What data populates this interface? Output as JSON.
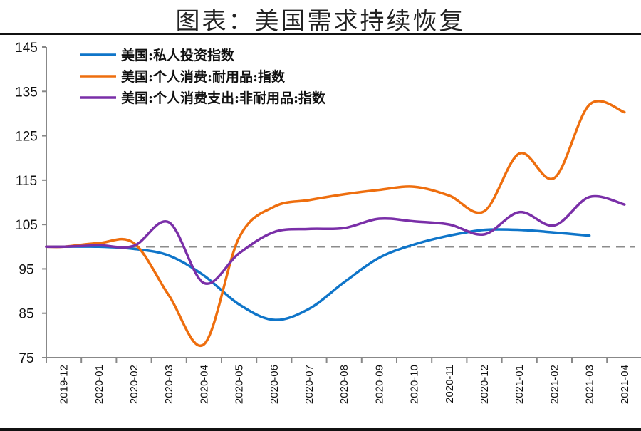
{
  "title": "图表：美国需求持续恢复",
  "chart_data": {
    "type": "line",
    "title": "图表：美国需求持续恢复",
    "xlabel": "",
    "ylabel": "",
    "categories": [
      "2019-12",
      "2020-01",
      "2020-02",
      "2020-03",
      "2020-04",
      "2020-05",
      "2020-06",
      "2020-07",
      "2020-08",
      "2020-09",
      "2020-10",
      "2020-11",
      "2020-12",
      "2021-01",
      "2021-02",
      "2021-03",
      "2021-04"
    ],
    "ylim": [
      75,
      145
    ],
    "yticks": [
      75,
      85,
      95,
      105,
      115,
      125,
      135,
      145
    ],
    "grid": false,
    "legend": "top-left",
    "reference_line": {
      "value": 100,
      "style": "dashed",
      "color": "#8c8c8c"
    },
    "series": [
      {
        "name": "美国:私人投资指数",
        "color": "#0f75c9",
        "values": [
          100,
          100,
          99.5,
          98,
          93.5,
          87,
          83.5,
          86,
          92,
          97.5,
          100.5,
          102.5,
          103.8,
          103.8,
          103.2,
          102.5,
          null
        ]
      },
      {
        "name": "美国:个人消费:耐用品:指数",
        "color": "#ee6e0e",
        "values": [
          100,
          100.8,
          100.8,
          89,
          78,
          102,
          109,
          110.5,
          111.8,
          112.8,
          113.5,
          111.5,
          108,
          121,
          115.5,
          132,
          130.3
        ]
      },
      {
        "name": "美国:个人消费支出:非耐用品:指数",
        "color": "#7a2fa8",
        "values": [
          100,
          100.3,
          100.2,
          105.5,
          91.8,
          98.5,
          103.3,
          104,
          104.2,
          106.3,
          105.7,
          105,
          102.8,
          107.8,
          104.8,
          111.2,
          109.5
        ]
      }
    ]
  }
}
